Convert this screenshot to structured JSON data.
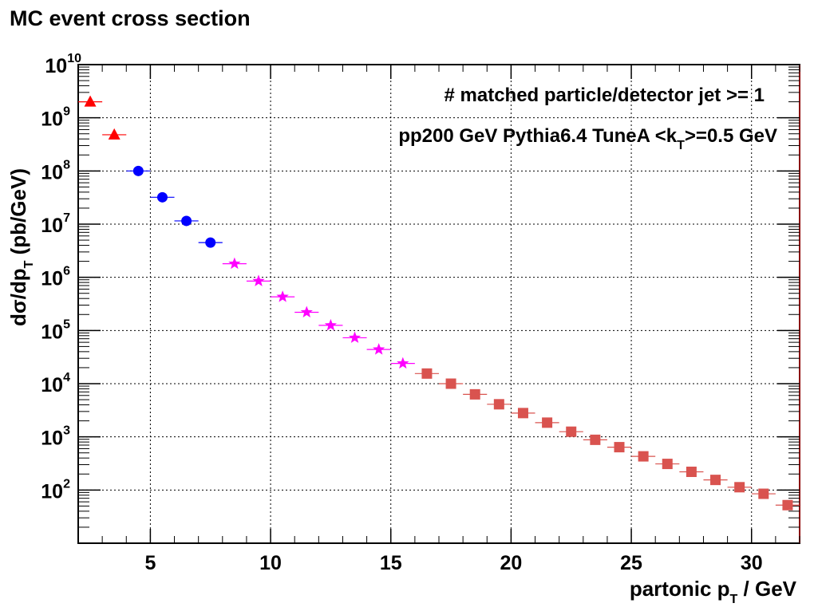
{
  "title": "MC event cross section",
  "annotations": {
    "line1": "# matched particle/detector jet >= 1",
    "line2_prefix": "pp200 GeV Pythia6.4 TuneA <k",
    "line2_sub": "T",
    "line2_suffix": ">=0.5 GeV"
  },
  "chart_data": {
    "type": "scatter",
    "xlabel": {
      "prefix": "partonic p",
      "sub": "T",
      "suffix": " / GeV"
    },
    "ylabel": {
      "prefix": "dσ/dp",
      "sub": "T",
      "suffix": " (pb/GeV)"
    },
    "xlim": [
      2,
      32
    ],
    "ylim": [
      10,
      10000000000
    ],
    "yscale": "log",
    "grid": true,
    "x_ticks": [
      5,
      10,
      15,
      20,
      25,
      30
    ],
    "y_ticks": [
      {
        "base": "10",
        "exp": "2",
        "value": 100
      },
      {
        "base": "10",
        "exp": "3",
        "value": 1000
      },
      {
        "base": "10",
        "exp": "4",
        "value": 10000
      },
      {
        "base": "10",
        "exp": "5",
        "value": 100000
      },
      {
        "base": "10",
        "exp": "6",
        "value": 1000000
      },
      {
        "base": "10",
        "exp": "7",
        "value": 10000000
      },
      {
        "base": "10",
        "exp": "8",
        "value": 100000000
      },
      {
        "base": "10",
        "exp": "9",
        "value": 1000000000
      },
      {
        "base": "10",
        "exp": "10",
        "value": 10000000000
      }
    ],
    "series": [
      {
        "marker": "triangle",
        "color": "#ff0000",
        "x": [
          2.5,
          3.5
        ],
        "y": [
          2000000000,
          480000000
        ]
      },
      {
        "marker": "circle",
        "color": "#0000ff",
        "x": [
          4.5,
          5.5,
          6.5,
          7.5
        ],
        "y": [
          100000000,
          32000000,
          11500000,
          4500000
        ]
      },
      {
        "marker": "star",
        "color": "#ff00ff",
        "x": [
          8.5,
          9.5,
          10.5,
          11.5,
          12.5,
          13.5,
          14.5,
          15.5
        ],
        "y": [
          1800000,
          850000,
          430000,
          220000,
          125000,
          73000,
          44000,
          24000
        ]
      },
      {
        "marker": "square",
        "color": "#d9534f",
        "x": [
          16.5,
          17.5,
          18.5,
          19.5,
          20.5,
          21.5,
          22.5,
          23.5,
          24.5,
          25.5,
          26.5,
          27.5,
          28.5,
          29.5,
          30.5,
          31.5
        ],
        "y": [
          15500,
          10000,
          6300,
          4100,
          2800,
          1850,
          1250,
          880,
          640,
          430,
          310,
          220,
          155,
          113,
          85,
          52
        ]
      }
    ]
  }
}
